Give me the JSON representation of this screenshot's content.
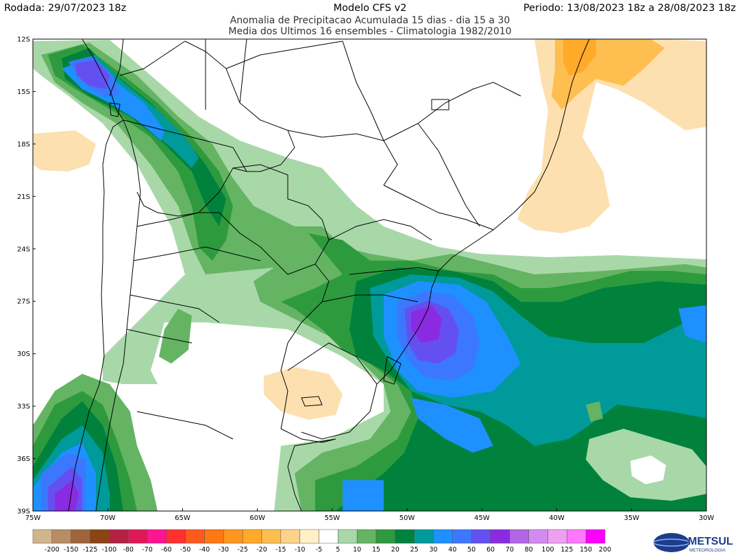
{
  "header": {
    "run": "Rodada: 29/07/2023 18z",
    "model": "Modelo CFS v2",
    "period": "Periodo: 13/08/2023 18z a 28/08/2023 18z",
    "subtitle1": "Anomalia de Precipitacao Acumulada 15 dias - dia 15 a 30",
    "subtitle2": "Media dos Ultimos 16 ensembles - Climatologia 1982/2010"
  },
  "map": {
    "lat_labels": [
      "12S",
      "15S",
      "18S",
      "21S",
      "24S",
      "27S",
      "30S",
      "33S",
      "36S",
      "39S"
    ],
    "lon_labels": [
      "75W",
      "70W",
      "65W",
      "60W",
      "55W",
      "50W",
      "45W",
      "40W",
      "35W",
      "30W"
    ]
  },
  "colorbar": {
    "labels": [
      "-200",
      "-150",
      "-125",
      "-100",
      "-80",
      "-70",
      "-60",
      "-50",
      "-40",
      "-30",
      "-25",
      "-20",
      "-15",
      "-10",
      "-5",
      "5",
      "10",
      "15",
      "20",
      "25",
      "30",
      "40",
      "50",
      "60",
      "70",
      "80",
      "100",
      "125",
      "150",
      "200"
    ],
    "colors": [
      "#d2b48c",
      "#b98c64",
      "#a0643c",
      "#8b4513",
      "#b22244",
      "#e0185a",
      "#ff1493",
      "#ff3030",
      "#ff5a1e",
      "#ff7814",
      "#ff961e",
      "#ffaa28",
      "#ffbe50",
      "#ffd28c",
      "#fff0c8",
      "#ffffff",
      "#a8d8a8",
      "#64b464",
      "#2e9a3e",
      "#00823c",
      "#009a9a",
      "#1e90ff",
      "#3c78ff",
      "#6450f0",
      "#8a2be2",
      "#b464e6",
      "#d28cf0",
      "#f0a0f0",
      "#ff78ff",
      "#ff00ff"
    ]
  },
  "logo": {
    "brand": "METSUL",
    "tagline": "METEOROLOGIA"
  }
}
